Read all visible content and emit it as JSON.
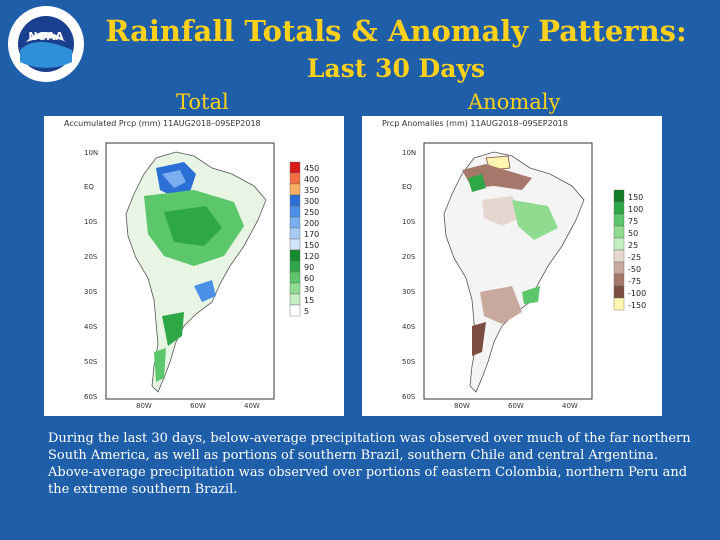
{
  "header": {
    "title_line1": "Rainfall Totals & Anomaly Patterns:",
    "title_line2": "Last 30 Days",
    "left_heading": "Total",
    "right_heading": "Anomaly",
    "logo_text": "NOAA"
  },
  "total_map": {
    "map_title": "Accumulated Prcp (mm) 11AUG2018–09SEP2018",
    "lat_labels": [
      "10N",
      "EQ",
      "10S",
      "20S",
      "30S",
      "40S",
      "50S",
      "60S"
    ],
    "lon_labels": [
      "80W",
      "60W",
      "40W"
    ],
    "legend": [
      {
        "label": "450",
        "color": "#d7191c"
      },
      {
        "label": "400",
        "color": "#f46d43"
      },
      {
        "label": "350",
        "color": "#fdae61"
      },
      {
        "label": "300",
        "color": "#2b6fd6"
      },
      {
        "label": "250",
        "color": "#4b8fe8"
      },
      {
        "label": "200",
        "color": "#79aef0"
      },
      {
        "label": "170",
        "color": "#a6cbf5"
      },
      {
        "label": "150",
        "color": "#d0e4fa"
      },
      {
        "label": "120",
        "color": "#138a2c"
      },
      {
        "label": "90",
        "color": "#2ea847"
      },
      {
        "label": "60",
        "color": "#5cc66a"
      },
      {
        "label": "30",
        "color": "#8fdc91"
      },
      {
        "label": "15",
        "color": "#c3efc2"
      },
      {
        "label": "5",
        "color": "#ffffff"
      }
    ]
  },
  "anomaly_map": {
    "map_title": "Prcp Anomalies (mm) 11AUG2018–09SEP2018",
    "lat_labels": [
      "10N",
      "EQ",
      "10S",
      "20S",
      "30S",
      "40S",
      "50S",
      "60S"
    ],
    "lon_labels": [
      "80W",
      "60W",
      "40W"
    ],
    "legend": [
      {
        "label": "150",
        "color": "#137a2a"
      },
      {
        "label": "100",
        "color": "#2ea847"
      },
      {
        "label": "75",
        "color": "#5cc66a"
      },
      {
        "label": "50",
        "color": "#8fdc91"
      },
      {
        "label": "25",
        "color": "#c3efc2"
      },
      {
        "label": "-25",
        "color": "#e6d6d0"
      },
      {
        "label": "-50",
        "color": "#c9a99e"
      },
      {
        "label": "-75",
        "color": "#a5786b"
      },
      {
        "label": "-100",
        "color": "#7a4d40"
      },
      {
        "label": "-150",
        "color": "#fff7b0"
      }
    ]
  },
  "caption": "During the last 30 days, below-average precipitation was observed over much of the far northern South America, as well as portions of southern Brazil, southern Chile and central Argentina. Above-average precipitation was observed over portions of eastern Colombia, northern Peru and the extreme southern Brazil.",
  "colors": {
    "background": "#1f5ea8",
    "title": "#ffd11a",
    "land": "#ffffff",
    "ocean": "#ffffff"
  }
}
